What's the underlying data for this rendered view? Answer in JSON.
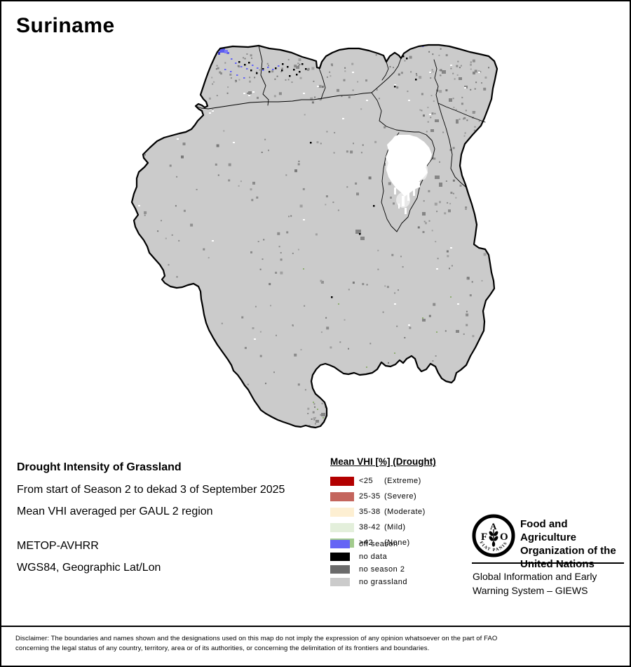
{
  "page": {
    "title": "Suriname"
  },
  "info_block": {
    "title": "Drought Intensity of Grassland",
    "period_line": "From start of Season 2 to dekad 3 of September 2025",
    "method_line": "Mean VHI averaged per GAUL 2 region",
    "sensor_line": "METOP-AVHRR",
    "projection_line": "WGS84, Geographic Lat/Lon"
  },
  "legend": {
    "title": "Mean VHI [%] (Drought)",
    "classes": [
      {
        "range": "<25",
        "label": "(Extreme)",
        "color": "#b30000"
      },
      {
        "range": "25-35",
        "label": "(Severe)",
        "color": "#c4655d"
      },
      {
        "range": "35-38",
        "label": "(Moderate)",
        "color": "#fdefd2"
      },
      {
        "range": "38-42",
        "label": "(Mild)",
        "color": "#e3efdb"
      },
      {
        "range": ">42",
        "label": "(None)",
        "color": "#a2cb8d"
      }
    ],
    "aux_classes": [
      {
        "label": "off season",
        "color": "#6565f5"
      },
      {
        "label": "no data",
        "color": "#000000"
      },
      {
        "label": "no season 2",
        "color": "#6b6b6b"
      },
      {
        "label": "no grassland",
        "color": "#cbcbcb"
      }
    ]
  },
  "map": {
    "country": "Suriname",
    "water_body_color": "#ffffff",
    "border_color": "#000000"
  },
  "footer": {
    "org_line1": "Food and Agriculture",
    "org_line2": "Organization of the",
    "org_line3": "United Nations",
    "logo_letter_f": "F",
    "logo_letter_a": "A",
    "logo_letter_o": "O",
    "logo_motto": "FIAT PANIS",
    "giews_line1": "Global Information and Early",
    "giews_line2": "Warning System – GIEWS"
  },
  "disclaimer": {
    "line1": "Disclaimer: The boundaries and names shown and the designations used on this map do not imply the expression of any opinion whatsoever on the part of FAO",
    "line2": "concerning the legal status of any country, territory, area or of its authorities, or concerning the delimitation of its frontiers and boundaries."
  }
}
